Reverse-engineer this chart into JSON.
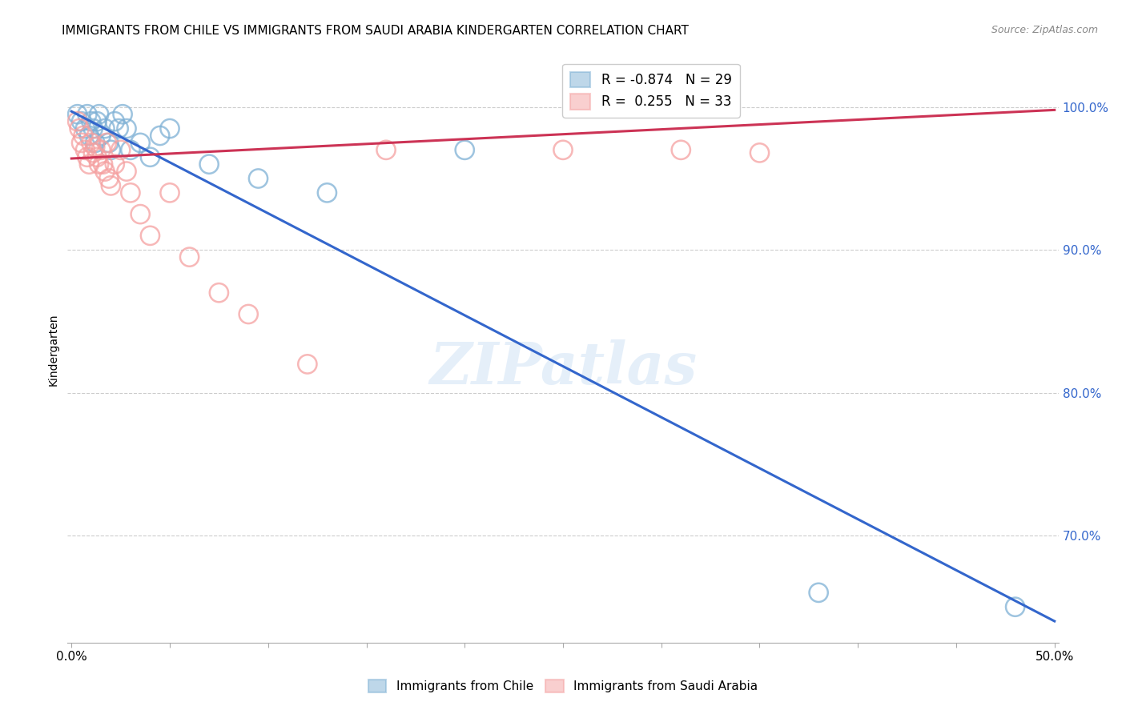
{
  "title": "IMMIGRANTS FROM CHILE VS IMMIGRANTS FROM SAUDI ARABIA KINDERGARTEN CORRELATION CHART",
  "source": "Source: ZipAtlas.com",
  "ylabel": "Kindergarten",
  "y_tick_labels": [
    "100.0%",
    "90.0%",
    "80.0%",
    "70.0%"
  ],
  "y_tick_values": [
    1.0,
    0.9,
    0.8,
    0.7
  ],
  "x_lim": [
    -0.002,
    0.502
  ],
  "y_lim": [
    0.625,
    1.035
  ],
  "legend_blue_R": "-0.874",
  "legend_blue_N": "29",
  "legend_pink_R": "0.255",
  "legend_pink_N": "33",
  "blue_color": "#7EB0D5",
  "pink_color": "#F5A0A0",
  "blue_line_color": "#3366CC",
  "pink_line_color": "#CC3355",
  "watermark": "ZIPatlas",
  "blue_scatter_x": [
    0.003,
    0.005,
    0.007,
    0.008,
    0.009,
    0.01,
    0.011,
    0.012,
    0.013,
    0.014,
    0.015,
    0.017,
    0.019,
    0.02,
    0.022,
    0.024,
    0.026,
    0.028,
    0.03,
    0.035,
    0.04,
    0.045,
    0.05,
    0.07,
    0.095,
    0.13,
    0.2,
    0.38,
    0.48
  ],
  "blue_scatter_y": [
    0.995,
    0.99,
    0.985,
    0.995,
    0.98,
    0.99,
    0.985,
    0.975,
    0.99,
    0.995,
    0.98,
    0.985,
    0.975,
    0.97,
    0.99,
    0.985,
    0.995,
    0.985,
    0.97,
    0.975,
    0.965,
    0.98,
    0.985,
    0.96,
    0.95,
    0.94,
    0.97,
    0.66,
    0.65
  ],
  "pink_scatter_x": [
    0.003,
    0.004,
    0.005,
    0.006,
    0.007,
    0.008,
    0.009,
    0.01,
    0.011,
    0.012,
    0.013,
    0.014,
    0.015,
    0.016,
    0.017,
    0.018,
    0.019,
    0.02,
    0.022,
    0.025,
    0.028,
    0.03,
    0.035,
    0.04,
    0.05,
    0.06,
    0.075,
    0.09,
    0.12,
    0.16,
    0.25,
    0.31,
    0.35
  ],
  "pink_scatter_y": [
    0.99,
    0.985,
    0.975,
    0.98,
    0.97,
    0.965,
    0.96,
    0.975,
    0.968,
    0.972,
    0.965,
    0.96,
    0.97,
    0.96,
    0.955,
    0.975,
    0.95,
    0.945,
    0.96,
    0.97,
    0.955,
    0.94,
    0.925,
    0.91,
    0.94,
    0.895,
    0.87,
    0.855,
    0.82,
    0.97,
    0.97,
    0.97,
    0.968
  ],
  "blue_trend_x": [
    0.0,
    0.5
  ],
  "blue_trend_y": [
    0.997,
    0.64
  ],
  "pink_trend_x": [
    0.0,
    0.5
  ],
  "pink_trend_y": [
    0.964,
    0.998
  ]
}
